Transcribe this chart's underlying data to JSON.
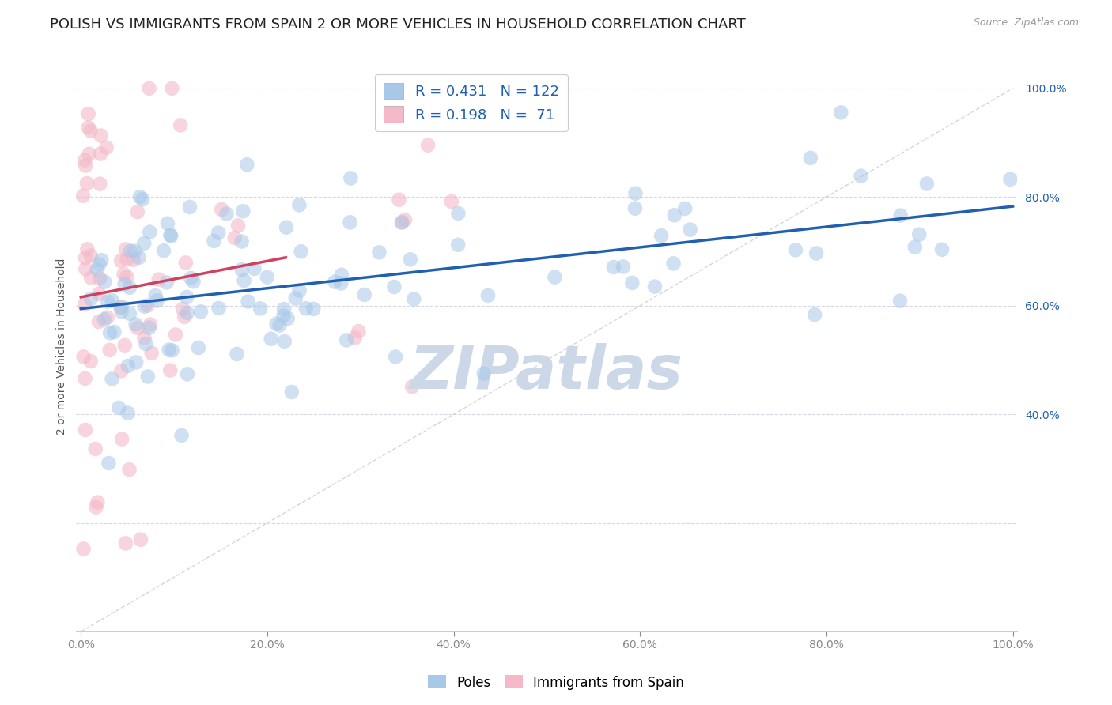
{
  "title": "POLISH VS IMMIGRANTS FROM SPAIN 2 OR MORE VEHICLES IN HOUSEHOLD CORRELATION CHART",
  "source": "Source: ZipAtlas.com",
  "ylabel": "2 or more Vehicles in Household",
  "R_blue": 0.431,
  "N_blue": 122,
  "R_pink": 0.198,
  "N_pink": 71,
  "blue_color": "#a8c8e8",
  "pink_color": "#f4b8c8",
  "blue_line_color": "#2060b0",
  "pink_line_color": "#d04060",
  "diagonal_color": "#cccccc",
  "watermark_color": "#ccd8e8",
  "legend_blue_label": "Poles",
  "legend_pink_label": "Immigrants from Spain",
  "background_color": "#ffffff",
  "grid_color": "#d8d8e4",
  "title_fontsize": 13,
  "axis_label_fontsize": 10,
  "tick_fontsize": 10,
  "legend_fontsize": 13,
  "right_tick_color": "#2060b0"
}
